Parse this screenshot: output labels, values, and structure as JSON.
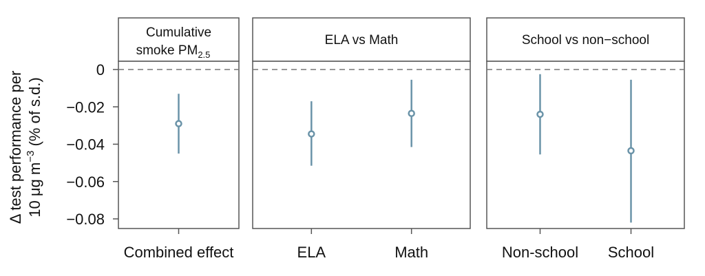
{
  "chart_data": {
    "type": "scatter",
    "ylabel_line1": "Δ test performance per",
    "ylabel_line2_prefix": "10 μg m",
    "ylabel_line2_sup": "−3",
    "ylabel_line2_suffix": " (% of s.d.)",
    "ylim": [
      -0.085,
      0.0
    ],
    "yticks": [
      0,
      -0.02,
      -0.04,
      -0.06,
      -0.08
    ],
    "ytick_labels": [
      "0",
      "−0.02",
      "−0.04",
      "−0.06",
      "−0.08"
    ],
    "reference_line": 0,
    "panels": [
      {
        "strip_line1": "Cumulative",
        "strip_line2": "smoke PM",
        "strip_line2_sub": "2.5",
        "categories": [
          "Combined effect"
        ],
        "estimates": [
          -0.029
        ],
        "ci_low": [
          -0.045
        ],
        "ci_high": [
          -0.013
        ]
      },
      {
        "strip_line1": "ELA vs Math",
        "categories": [
          "ELA",
          "Math"
        ],
        "estimates": [
          -0.0345,
          -0.0235
        ],
        "ci_low": [
          -0.0515,
          -0.0415
        ],
        "ci_high": [
          -0.017,
          -0.0055
        ]
      },
      {
        "strip_line1": "School vs non−school",
        "categories": [
          "Non-school",
          "School"
        ],
        "estimates": [
          -0.024,
          -0.0435
        ],
        "ci_low": [
          -0.0455,
          -0.082
        ],
        "ci_high": [
          -0.0025,
          -0.0055
        ]
      }
    ],
    "colors": {
      "series": "#6a93a8",
      "reference": "#777777",
      "frame": "#555555"
    }
  }
}
